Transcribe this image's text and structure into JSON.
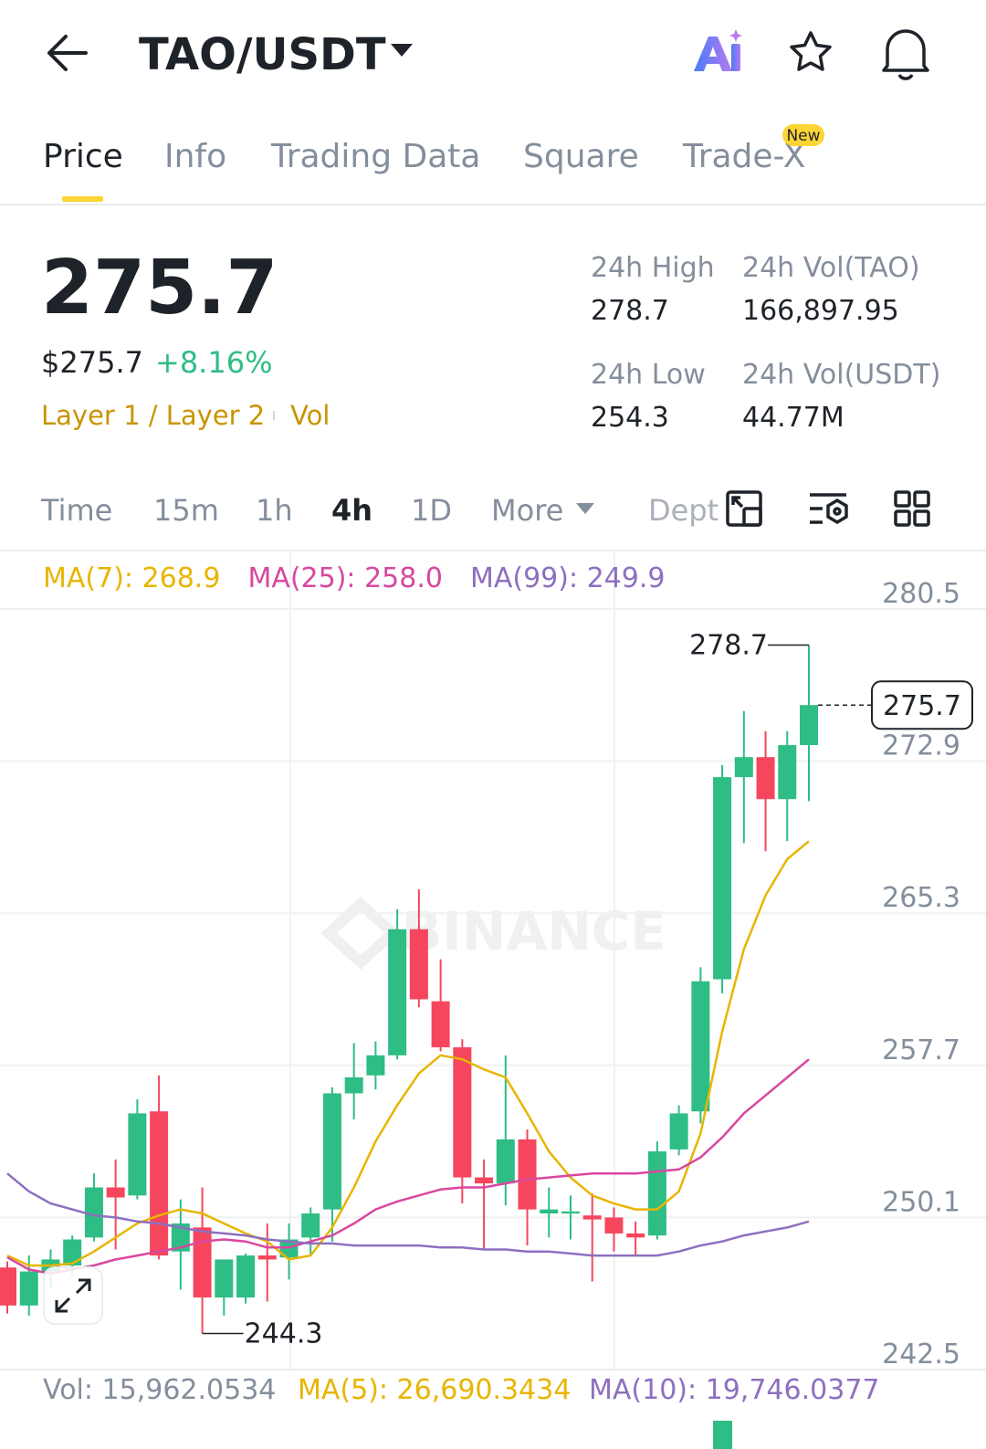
{
  "header": {
    "title": "TAO/USDT"
  },
  "tabs": [
    "Price",
    "Info",
    "Trading Data",
    "Square",
    "Trade-X"
  ],
  "badge": "New",
  "ticker": {
    "price": "275.7",
    "usd_price": "$275.7",
    "change": "+8.16%",
    "tag": "Layer 1 / Layer 2",
    "vol_tag": "Vol",
    "stats": [
      {
        "label": "24h High",
        "value": "278.7"
      },
      {
        "label": "24h Vol(TAO)",
        "value": "166,897.95"
      },
      {
        "label": "24h Low",
        "value": "254.3"
      },
      {
        "label": "24h Vol(USDT)",
        "value": "44.77M"
      }
    ]
  },
  "intervals": [
    "Time",
    "15m",
    "1h",
    "4h",
    "1D",
    "More",
    "Depth"
  ],
  "volume_legend": [
    "Vol: 15,962.0534",
    "MA(5): 26,690.3434",
    "MA(10): 19,746.0377"
  ],
  "chart_data": {
    "type": "candlestick",
    "watermark": "BINANCE",
    "ylim": [
      242.5,
      280.5
    ],
    "yticks": [
      280.5,
      272.9,
      265.3,
      257.7,
      250.1,
      242.5
    ],
    "grid": true,
    "up_color": "#2ebd85",
    "down_color": "#f6465d",
    "open": [
      247.6,
      245.7,
      247.4,
      247.7,
      249.1,
      251.6,
      251.2,
      255.4,
      248.4,
      249.6,
      246.1,
      246.1,
      248.2,
      248.1,
      249.1,
      250.5,
      256.3,
      257.2,
      258.2,
      264.5,
      260.9,
      258.6,
      252.1,
      251.8,
      254.0,
      250.3,
      250.3,
      250.2,
      250.1,
      249.3,
      249.2,
      253.5,
      255.4,
      262.0,
      272.1,
      273.1,
      271.0,
      273.7
    ],
    "high": [
      247.9,
      248.2,
      248.5,
      249.2,
      252.3,
      253.0,
      256.0,
      257.2,
      251.0,
      251.6,
      248.0,
      248.3,
      249.8,
      249.8,
      250.6,
      256.6,
      258.8,
      258.9,
      265.5,
      266.5,
      263.0,
      259.0,
      253.0,
      258.2,
      254.5,
      251.6,
      251.2,
      251.3,
      250.6,
      249.9,
      253.9,
      255.7,
      262.6,
      272.7,
      275.4,
      274.4,
      274.4,
      278.7
    ],
    "low": [
      245.3,
      245.2,
      246.6,
      247.2,
      248.9,
      248.5,
      251.0,
      248.0,
      246.5,
      244.3,
      245.2,
      245.8,
      245.9,
      247.0,
      248.2,
      248.9,
      255.0,
      256.5,
      258.0,
      260.6,
      258.4,
      250.8,
      248.5,
      250.7,
      248.7,
      249.1,
      249.0,
      246.9,
      248.4,
      248.2,
      249.0,
      253.2,
      254.8,
      261.3,
      268.8,
      268.4,
      268.9,
      270.9
    ],
    "close": [
      245.7,
      247.4,
      248.0,
      249.0,
      251.6,
      251.1,
      255.3,
      248.2,
      249.8,
      246.1,
      248.0,
      248.2,
      248.0,
      249.0,
      250.3,
      256.3,
      257.1,
      258.2,
      264.5,
      261.0,
      258.6,
      252.1,
      251.8,
      254.0,
      250.5,
      250.5,
      250.4,
      250.0,
      249.3,
      249.1,
      253.4,
      255.3,
      261.9,
      272.1,
      273.1,
      271.0,
      273.7,
      275.7
    ],
    "series": [
      {
        "name": "MA(7): 268.9",
        "color": "#e8b500",
        "values": [
          248.2,
          247.7,
          247.7,
          247.8,
          248.4,
          249.1,
          249.8,
          250.2,
          250.5,
          250.3,
          249.8,
          249.3,
          248.9,
          248.0,
          248.2,
          249.6,
          251.6,
          253.9,
          255.7,
          257.3,
          258.2,
          258.0,
          257.5,
          257.1,
          255.3,
          253.4,
          252.1,
          251.2,
          250.8,
          250.5,
          250.5,
          251.4,
          254.3,
          259.4,
          263.5,
          266.2,
          268.0,
          268.9
        ]
      },
      {
        "name": "MA(25): 258.0",
        "color": "#d9479f",
        "values": [
          248.1,
          247.5,
          247.3,
          247.5,
          247.7,
          248.0,
          248.2,
          248.4,
          248.6,
          248.9,
          249.0,
          248.9,
          248.6,
          248.6,
          248.9,
          249.2,
          249.8,
          250.5,
          250.9,
          251.2,
          251.5,
          251.6,
          251.6,
          251.8,
          252.0,
          252.1,
          252.2,
          252.3,
          252.3,
          252.3,
          252.4,
          252.5,
          253.1,
          254.1,
          255.3,
          256.2,
          257.1,
          258.0
        ]
      },
      {
        "name": "MA(99): 249.9",
        "color": "#8e6fc0",
        "values": [
          252.3,
          251.4,
          250.8,
          250.5,
          250.2,
          250.1,
          249.9,
          249.8,
          249.6,
          249.4,
          249.3,
          249.2,
          249.0,
          248.9,
          248.8,
          248.8,
          248.7,
          248.7,
          248.7,
          248.7,
          248.6,
          248.6,
          248.5,
          248.5,
          248.4,
          248.4,
          248.3,
          248.2,
          248.2,
          248.2,
          248.2,
          248.4,
          248.7,
          248.9,
          249.2,
          249.4,
          249.6,
          249.9
        ]
      }
    ],
    "annotations": {
      "high": 278.7,
      "low": 244.3,
      "last": 275.7
    }
  }
}
